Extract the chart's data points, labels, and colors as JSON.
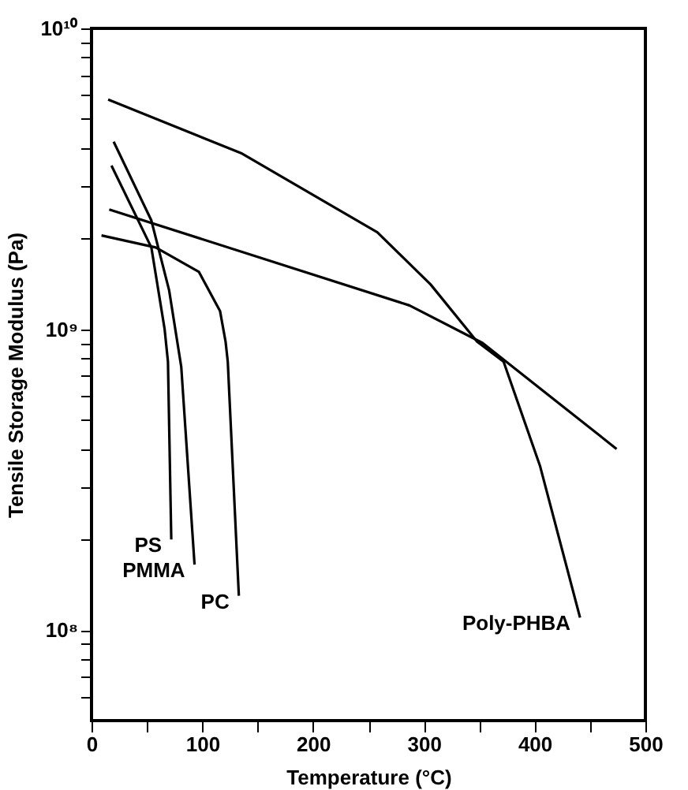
{
  "chart_data": {
    "type": "line",
    "xlabel": "Temperature (°C)",
    "ylabel": "Tensile Storage Modulus (Pa)",
    "log": true,
    "grid": false,
    "marker": "none",
    "line_style": "solid",
    "xlim": [
      0,
      500
    ],
    "ylim": [
      50000000,
      10000000000
    ],
    "xticks": [
      0,
      {
        "value": 50,
        "label": null
      },
      100,
      {
        "value": 150,
        "label": null
      },
      200,
      {
        "value": 250,
        "label": null
      },
      300,
      {
        "value": 350,
        "label": null
      },
      400,
      {
        "value": 450,
        "label": null
      },
      500
    ],
    "yticks": [
      {
        "value": 60000000,
        "label": null
      },
      {
        "value": 70000000,
        "label": null
      },
      {
        "value": 80000000,
        "label": null
      },
      {
        "value": 90000000,
        "label": null
      },
      {
        "value": 100000000,
        "label": "10⁸"
      },
      {
        "value": 200000000,
        "label": null
      },
      {
        "value": 300000000,
        "label": null
      },
      {
        "value": 400000000,
        "label": null
      },
      {
        "value": 500000000,
        "label": null
      },
      {
        "value": 600000000,
        "label": null
      },
      {
        "value": 700000000,
        "label": null
      },
      {
        "value": 800000000,
        "label": null
      },
      {
        "value": 900000000,
        "label": null
      },
      {
        "value": 1000000000,
        "label": "10⁹"
      },
      {
        "value": 2000000000,
        "label": null
      },
      {
        "value": 3000000000,
        "label": null
      },
      {
        "value": 4000000000,
        "label": null
      },
      {
        "value": 5000000000,
        "label": null
      },
      {
        "value": 6000000000,
        "label": null
      },
      {
        "value": 7000000000,
        "label": null
      },
      {
        "value": 8000000000,
        "label": null
      },
      {
        "value": 9000000000,
        "label": null
      },
      {
        "value": 10000000000,
        "label": "10¹⁰"
      }
    ],
    "series": [
      {
        "name": "Poly-PHBA",
        "color": "#000000",
        "x": [
          15,
          135,
          258,
          306,
          348,
          372,
          405,
          441
        ],
        "values": [
          5800000000,
          3850000000,
          2100000000,
          1410000000,
          910000000,
          780000000,
          350000000,
          110000000
        ]
      },
      {
        "color": "#000000",
        "x": [
          16,
          287,
          353,
          474
        ],
        "values": [
          2500000000,
          1200000000,
          900000000,
          400000000
        ]
      },
      {
        "name": "PC",
        "color": "#000000",
        "x": [
          9,
          58,
          97,
          116,
          121,
          123,
          133
        ],
        "values": [
          2050000000,
          1870000000,
          1550000000,
          1150000000,
          910000000,
          780000000,
          130000000
        ]
      },
      {
        "name": "PS",
        "color": "#000000",
        "x": [
          18,
          54,
          66,
          69,
          72
        ],
        "values": [
          3500000000,
          1870000000,
          1000000000,
          780000000,
          200000000
        ]
      },
      {
        "name": "PMMA",
        "color": "#000000",
        "x": [
          20,
          54,
          70,
          81,
          93
        ],
        "values": [
          4200000000,
          2300000000,
          1350000000,
          750000000,
          165000000
        ]
      }
    ]
  }
}
